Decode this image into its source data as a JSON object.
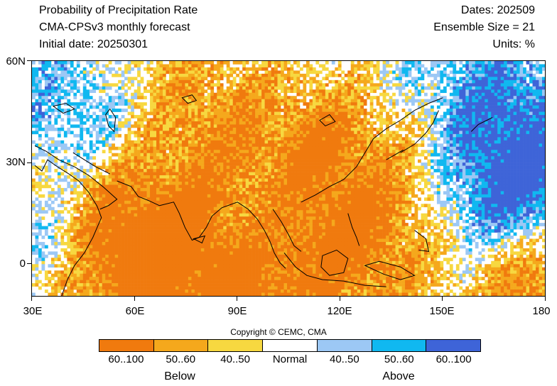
{
  "header": {
    "title": "Probability of Precipitation Rate",
    "model": "CMA-CPSv3 monthly forecast",
    "initial_date": "Initial date: 20250301",
    "dates": "Dates: 202509",
    "ensemble": "Ensemble Size = 21",
    "units": "Units: %"
  },
  "axes": {
    "lat_labels": [
      "60N",
      "30N",
      "0"
    ],
    "lon_labels": [
      "30E",
      "60E",
      "90E",
      "120E",
      "150E",
      "180"
    ]
  },
  "copyright": "Copyright © CEMC, CMA",
  "legend": {
    "items": [
      {
        "label": "60..100",
        "color": "#f07a0e",
        "category": "Below"
      },
      {
        "label": "50..60",
        "color": "#f5a81c",
        "category": "Below"
      },
      {
        "label": "40..50",
        "color": "#f7d840",
        "category": "Below"
      },
      {
        "label": "Normal",
        "color": "#ffffff",
        "category": "Normal"
      },
      {
        "label": "40..50",
        "color": "#9cc8f5",
        "category": "Above"
      },
      {
        "label": "50..60",
        "color": "#10b8f0",
        "category": "Above"
      },
      {
        "label": "60..100",
        "color": "#3e64d8",
        "category": "Above"
      }
    ],
    "below_label": "Below",
    "above_label": "Above"
  },
  "map": {
    "region": "Asia / Indian Ocean / Western Pacific",
    "lon_range": [
      30,
      180
    ],
    "lat_range": [
      -10,
      60
    ],
    "coastline_color": "#000000"
  }
}
